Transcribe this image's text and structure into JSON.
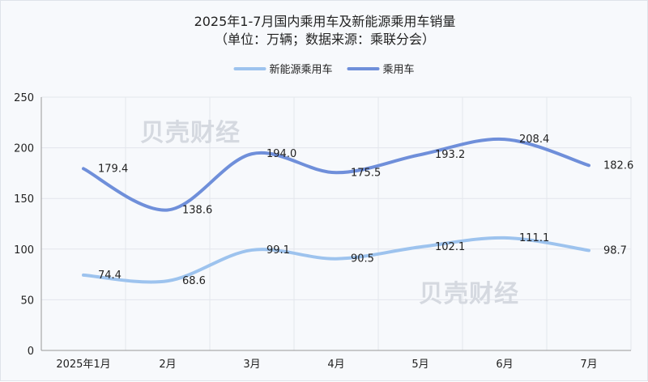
{
  "chart_data": {
    "type": "line",
    "title": "2025年1-7月国内乘用车及新能源乘用车销量",
    "subtitle": "（单位：万辆；数据来源：乘联分会）",
    "categories": [
      "2025年1月",
      "2月",
      "3月",
      "4月",
      "5月",
      "6月",
      "7月"
    ],
    "series": [
      {
        "name": "新能源乘用车",
        "color": "#9dc3ee",
        "values": [
          74.4,
          68.6,
          99.1,
          90.5,
          102.1,
          111.1,
          98.7
        ]
      },
      {
        "name": "乘用车",
        "color": "#6f8fda",
        "values": [
          179.4,
          138.6,
          194.0,
          175.5,
          193.2,
          208.4,
          182.6
        ]
      }
    ],
    "ylim": [
      0,
      250
    ],
    "yticks": [
      0,
      50,
      100,
      150,
      200,
      250
    ],
    "grid": true,
    "legend_position": "top-center",
    "watermark": "贝壳财经"
  }
}
